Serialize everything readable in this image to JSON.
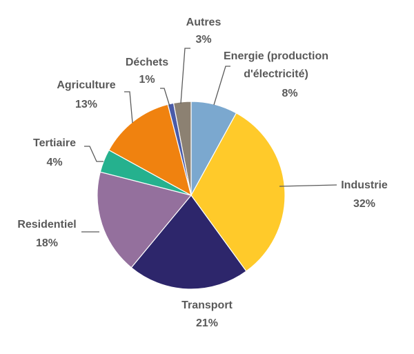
{
  "chart_data": {
    "type": "pie",
    "title": "",
    "slices": [
      {
        "label_lines": [
          "Energie  (production",
          "d'électricité)"
        ],
        "value": 8,
        "value_label": "8%",
        "color": "#7BA8CF"
      },
      {
        "label_lines": [
          "Industrie"
        ],
        "value": 32,
        "value_label": "32%",
        "color": "#FFCA2A"
      },
      {
        "label_lines": [
          "Transport"
        ],
        "value": 21,
        "value_label": "21%",
        "color": "#2D266B"
      },
      {
        "label_lines": [
          "Residentiel"
        ],
        "value": 18,
        "value_label": "18%",
        "color": "#94709D"
      },
      {
        "label_lines": [
          "Tertiaire"
        ],
        "value": 4,
        "value_label": "4%",
        "color": "#25B18E"
      },
      {
        "label_lines": [
          "Agriculture"
        ],
        "value": 13,
        "value_label": "13%",
        "color": "#F0820F"
      },
      {
        "label_lines": [
          "Déchets"
        ],
        "value": 1,
        "value_label": "1%",
        "color": "#4A5BA8"
      },
      {
        "label_lines": [
          "Autres"
        ],
        "value": 3,
        "value_label": "3%",
        "color": "#8C8172"
      }
    ],
    "start_angle_deg": 0,
    "direction": "clockwise"
  }
}
